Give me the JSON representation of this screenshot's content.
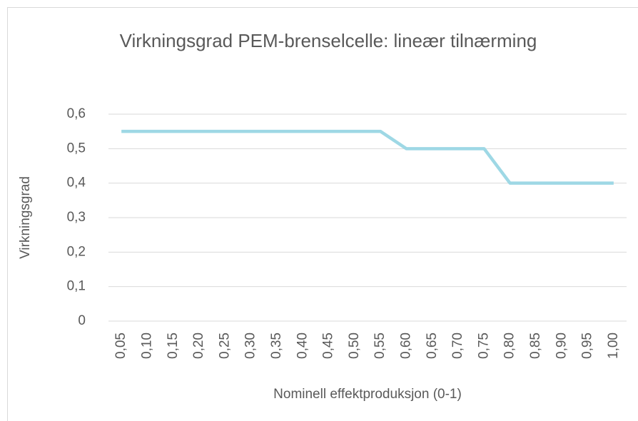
{
  "chart_data": {
    "type": "line",
    "title": "Virkningsgrad PEM-brenselcelle: lineær tilnærming",
    "x_label": "Nominell effektproduksjon (0-1)",
    "y_label": "Virkningsgrad",
    "categories": [
      "0,05",
      "0,10",
      "0,15",
      "0,20",
      "0,25",
      "0,30",
      "0,35",
      "0,40",
      "0,45",
      "0,50",
      "0,55",
      "0,60",
      "0,65",
      "0,70",
      "0,75",
      "0,80",
      "0,85",
      "0,90",
      "0,95",
      "1,00"
    ],
    "values": [
      0.55,
      0.55,
      0.55,
      0.55,
      0.55,
      0.55,
      0.55,
      0.55,
      0.55,
      0.55,
      0.55,
      0.5,
      0.5,
      0.5,
      0.5,
      0.4,
      0.4,
      0.4,
      0.4,
      0.4
    ],
    "color": "#9ed8e5",
    "ylim": [
      0,
      0.6
    ],
    "yticks": [
      0,
      {
        "value": 0.1,
        "label": "0,1"
      },
      {
        "value": 0.2,
        "label": "0,2"
      },
      {
        "value": 0.3,
        "label": "0,3"
      },
      {
        "value": 0.4,
        "label": "0,4"
      },
      {
        "value": 0.5,
        "label": "0,5"
      },
      {
        "value": 0.6,
        "label": "0,6"
      }
    ],
    "grid": true
  }
}
